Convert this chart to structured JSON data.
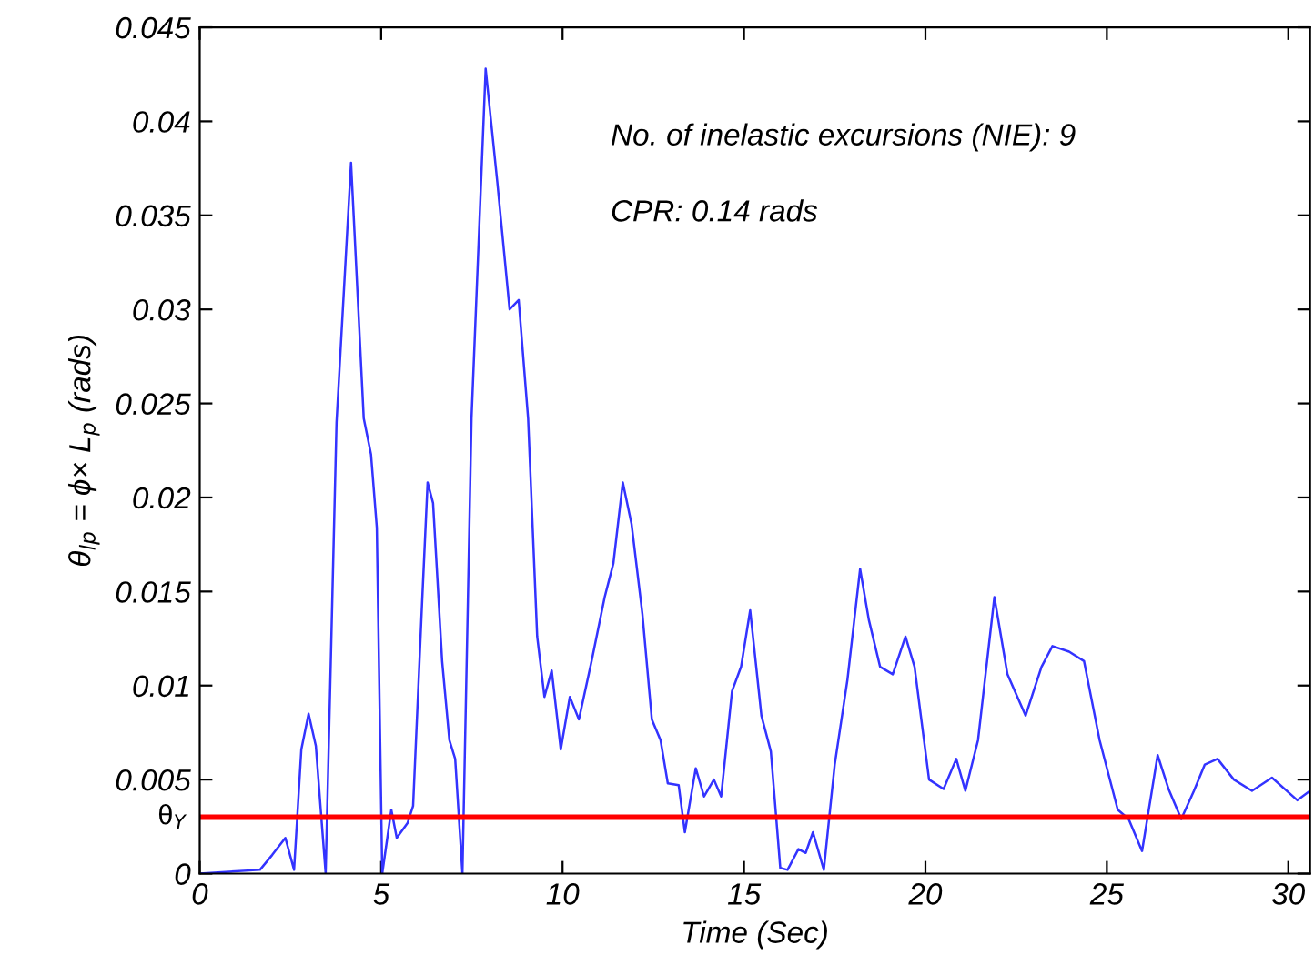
{
  "chart_data": {
    "type": "line",
    "xlabel": "Time (Sec)",
    "ylabel": "θ$_{lp}$ = ϕ× L$_{p}$ (rads)",
    "annotations": [
      "No. of inelastic excursions (NIE): 9",
      "CPR: 0.14 rads"
    ],
    "series": [
      {
        "color": "#3333ff",
        "x": [
          0,
          1.66,
          2.0,
          2.36,
          2.6,
          2.8,
          3.0,
          3.2,
          3.47,
          3.6,
          3.77,
          4.17,
          4.52,
          4.72,
          4.88,
          5.03,
          5.28,
          5.43,
          5.73,
          5.88,
          6.13,
          6.28,
          6.43,
          6.68,
          6.88,
          7.04,
          7.24,
          7.39,
          7.49,
          7.88,
          8.2,
          8.54,
          8.79,
          9.05,
          9.3,
          9.5,
          9.7,
          9.95,
          10.2,
          10.45,
          10.8,
          11.16,
          11.4,
          11.66,
          11.9,
          12.2,
          12.46,
          12.7,
          12.9,
          13.2,
          13.37,
          13.67,
          13.9,
          14.17,
          14.37,
          14.67,
          14.92,
          15.17,
          15.48,
          15.74,
          16.0,
          16.2,
          16.5,
          16.7,
          16.9,
          17.2,
          17.5,
          17.85,
          18.2,
          18.44,
          18.75,
          19.1,
          19.45,
          19.7,
          20.1,
          20.5,
          20.85,
          21.1,
          21.45,
          21.9,
          22.26,
          22.76,
          23.2,
          23.5,
          23.96,
          24.37,
          24.8,
          25.3,
          25.6,
          25.97,
          26.4,
          26.7,
          27.05,
          27.4,
          27.7,
          28.05,
          28.5,
          29.0,
          29.55,
          30.25,
          30.6
        ],
        "values": [
          0,
          0.0002,
          0.001,
          0.0019,
          0.0002,
          0.0066,
          0.0085,
          0.0068,
          0,
          0.0103,
          0.024,
          0.0378,
          0.0242,
          0.0223,
          0.0184,
          0,
          0.0034,
          0.0019,
          0.0027,
          0.0036,
          0.0145,
          0.0208,
          0.0197,
          0.0113,
          0.0071,
          0.0061,
          0,
          0.0145,
          0.0242,
          0.0428,
          0.0368,
          0.03,
          0.0305,
          0.0242,
          0.0126,
          0.0094,
          0.0108,
          0.0066,
          0.0094,
          0.0082,
          0.0113,
          0.0147,
          0.0165,
          0.0208,
          0.0186,
          0.0138,
          0.0082,
          0.0071,
          0.0048,
          0.0047,
          0.0022,
          0.0056,
          0.0041,
          0.005,
          0.0041,
          0.0097,
          0.011,
          0.014,
          0.0084,
          0.0065,
          0.0003,
          0.0002,
          0.0013,
          0.0011,
          0.0022,
          0.0002,
          0.0058,
          0.0103,
          0.0162,
          0.0135,
          0.011,
          0.0106,
          0.0126,
          0.011,
          0.005,
          0.0045,
          0.0061,
          0.0044,
          0.0071,
          0.0147,
          0.0106,
          0.0084,
          0.011,
          0.0121,
          0.0118,
          0.0113,
          0.0071,
          0.0034,
          0.0029,
          0.0012,
          0.0063,
          0.0045,
          0.0029,
          0.0044,
          0.0058,
          0.0061,
          0.005,
          0.0044,
          0.0051,
          0.0039,
          0.0044
        ]
      }
    ],
    "ref_lines": [
      {
        "axis": "y",
        "value": 0.003,
        "label": "θ$_{Y}$",
        "color": "#ff0000"
      }
    ],
    "xlim": [
      0,
      30.6
    ],
    "xticks": [
      0,
      5,
      10,
      15,
      20,
      25,
      30
    ],
    "ylim": [
      0,
      0.045
    ],
    "yticks": [
      0,
      0.005,
      0.01,
      0.015,
      0.02,
      0.025,
      0.03,
      0.035,
      0.04,
      0.045
    ],
    "grid": false,
    "legend": false
  }
}
